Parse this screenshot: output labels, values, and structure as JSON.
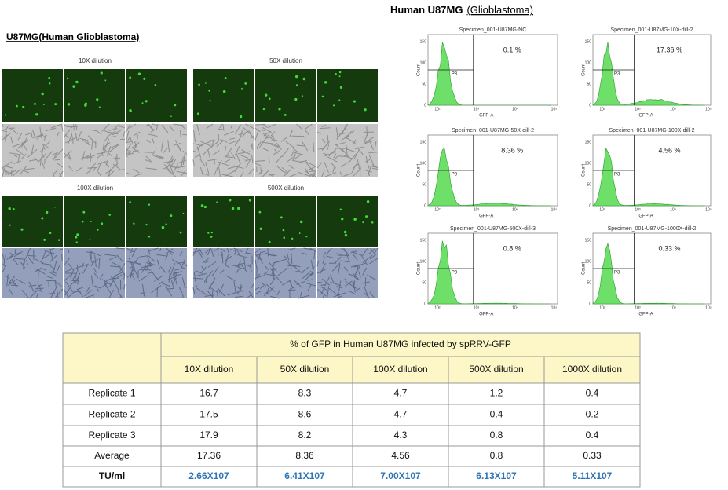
{
  "left_title": "U87MG(Human Glioblastoma)",
  "microscopy": [
    {
      "label": "10X dilution"
    },
    {
      "label": "50X dilution"
    },
    {
      "label": "100X dilution"
    },
    {
      "label": "500X dilution"
    }
  ],
  "right_title": {
    "main": "Human U87MG",
    "sub": "(Glioblastoma)"
  },
  "histograms": {
    "y_axis_label": "Count",
    "x_axis_label": "GFP-A",
    "gate_label": "P3",
    "yticks": [
      "0",
      "50",
      "100",
      "150"
    ],
    "xticks": [
      "10²",
      "10³",
      "10⁴",
      "10⁵"
    ],
    "plots": [
      {
        "title": "Specimen_001-U87MG-NC",
        "percent": "0.1 %"
      },
      {
        "title": "Specimen_001-U87MG-10X-dill-2",
        "percent": "17.36 %"
      },
      {
        "title": "Specimen_001-U87MG-50X-dill-2",
        "percent": "8.36 %"
      },
      {
        "title": "Specimen_001-U87MG-100X-dill-2",
        "percent": "4.56 %"
      },
      {
        "title": "Specimen_001-U87MG-500X-dill-3",
        "percent": "0.8 %"
      },
      {
        "title": "Specimen_001-U87MG-1000X-dill-2",
        "percent": "0.33 %"
      }
    ]
  },
  "table": {
    "title": "% of GFP in Human U87MG infected by spRRV-GFP",
    "columns": [
      "10X dilution",
      "50X dilution",
      "100X dilution",
      "500X dilution",
      "1000X dilution"
    ],
    "rows": [
      {
        "label": "Replicate 1",
        "cells": [
          "16.7",
          "8.3",
          "4.7",
          "1.2",
          "0.4"
        ]
      },
      {
        "label": "Replicate 2",
        "cells": [
          "17.5",
          "8.6",
          "4.7",
          "0.4",
          "0.2"
        ]
      },
      {
        "label": "Replicate 3",
        "cells": [
          "17.9",
          "8.2",
          "4.3",
          "0.8",
          "0.4"
        ]
      },
      {
        "label": "Average",
        "cells": [
          "17.36",
          "8.36",
          "4.56",
          "0.8",
          "0.33"
        ]
      },
      {
        "label": "TU/ml",
        "cells": [
          "2.66X107",
          "6.41X107",
          "7.00X107",
          "6.13X107",
          "5.11X107"
        ]
      }
    ]
  }
}
